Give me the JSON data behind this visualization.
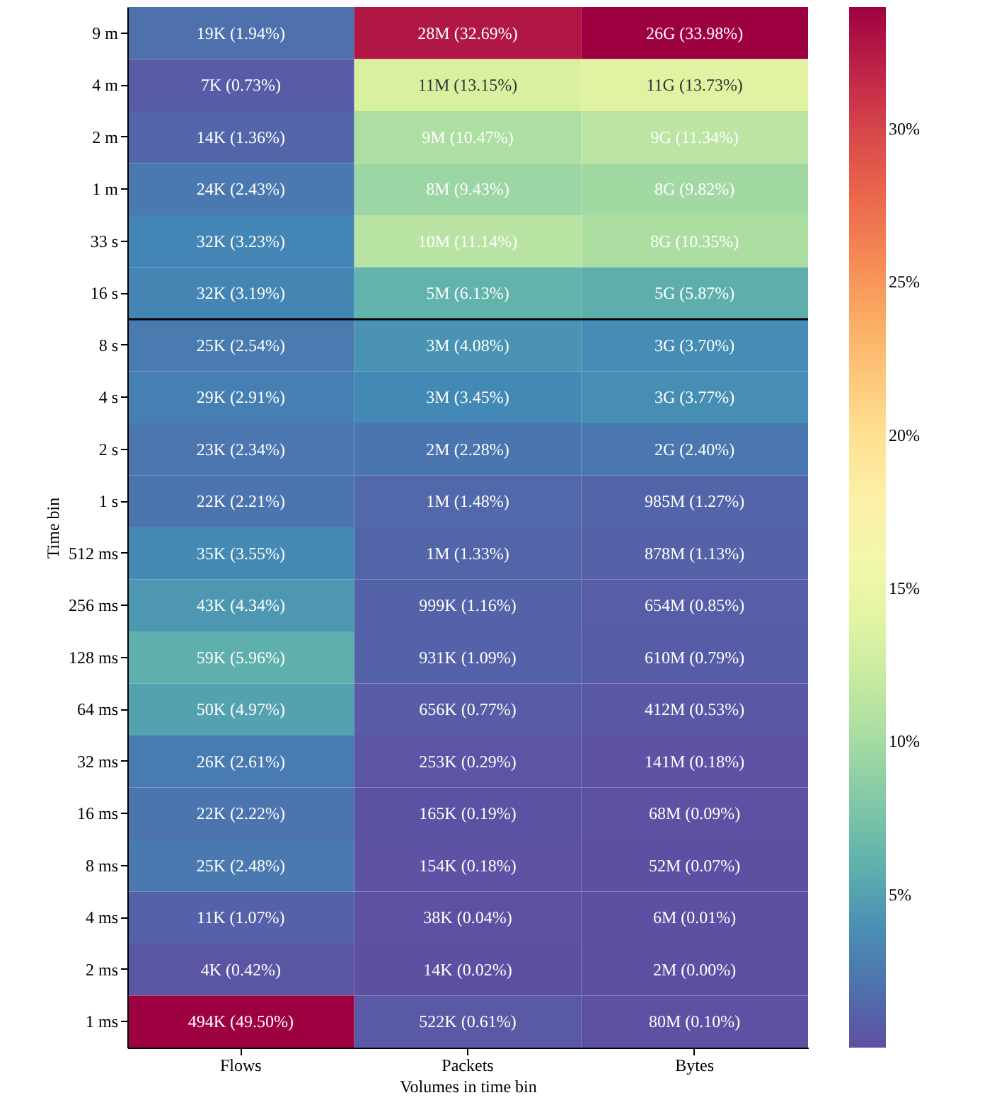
{
  "chart_data": {
    "type": "heatmap",
    "xlabel": "Volumes in time bin",
    "ylabel": "Time bin",
    "categories": [
      "Flows",
      "Packets",
      "Bytes"
    ],
    "y_categories": [
      "9 m",
      "4 m",
      "2 m",
      "1 m",
      "33 s",
      "16 s",
      "8 s",
      "4 s",
      "2 s",
      "1 s",
      "512 ms",
      "256 ms",
      "128 ms",
      "64 ms",
      "32 ms",
      "16 ms",
      "8 ms",
      "4 ms",
      "2 ms",
      "1 ms"
    ],
    "cells": [
      [
        1.94,
        32.69,
        33.98
      ],
      [
        0.73,
        13.15,
        13.73
      ],
      [
        1.36,
        10.47,
        11.34
      ],
      [
        2.43,
        9.43,
        9.82
      ],
      [
        3.23,
        11.14,
        10.35
      ],
      [
        3.19,
        6.13,
        5.87
      ],
      [
        2.54,
        4.08,
        3.7
      ],
      [
        2.91,
        3.45,
        3.77
      ],
      [
        2.34,
        2.28,
        2.4
      ],
      [
        2.21,
        1.48,
        1.27
      ],
      [
        3.55,
        1.33,
        1.13
      ],
      [
        4.34,
        1.16,
        0.85
      ],
      [
        5.96,
        1.09,
        0.79
      ],
      [
        4.97,
        0.77,
        0.53
      ],
      [
        2.61,
        0.29,
        0.18
      ],
      [
        2.22,
        0.19,
        0.09
      ],
      [
        2.48,
        0.18,
        0.07
      ],
      [
        1.07,
        0.04,
        0.01
      ],
      [
        0.42,
        0.02,
        0.0
      ],
      [
        49.5,
        0.61,
        0.1
      ]
    ],
    "cell_labels": [
      [
        "19K (1.94%)",
        "28M (32.69%)",
        "26G (33.98%)"
      ],
      [
        "7K (0.73%)",
        "11M (13.15%)",
        "11G (13.73%)"
      ],
      [
        "14K (1.36%)",
        "9M (10.47%)",
        "9G (11.34%)"
      ],
      [
        "24K (2.43%)",
        "8M (9.43%)",
        "8G (9.82%)"
      ],
      [
        "32K (3.23%)",
        "10M (11.14%)",
        "8G (10.35%)"
      ],
      [
        "32K (3.19%)",
        "5M (6.13%)",
        "5G (5.87%)"
      ],
      [
        "25K (2.54%)",
        "3M (4.08%)",
        "3G (3.70%)"
      ],
      [
        "29K (2.91%)",
        "3M (3.45%)",
        "3G (3.77%)"
      ],
      [
        "23K (2.34%)",
        "2M (2.28%)",
        "2G (2.40%)"
      ],
      [
        "22K (2.21%)",
        "1M (1.48%)",
        "985M (1.27%)"
      ],
      [
        "35K (3.55%)",
        "1M (1.33%)",
        "878M (1.13%)"
      ],
      [
        "43K (4.34%)",
        "999K (1.16%)",
        "654M (0.85%)"
      ],
      [
        "59K (5.96%)",
        "931K (1.09%)",
        "610M (0.79%)"
      ],
      [
        "50K (4.97%)",
        "656K (0.77%)",
        "412M (0.53%)"
      ],
      [
        "26K (2.61%)",
        "253K (0.29%)",
        "141M (0.18%)"
      ],
      [
        "22K (2.22%)",
        "165K (0.19%)",
        "68M (0.09%)"
      ],
      [
        "25K (2.48%)",
        "154K (0.18%)",
        "52M (0.07%)"
      ],
      [
        "11K (1.07%)",
        "38K (0.04%)",
        "6M (0.01%)"
      ],
      [
        "4K (0.42%)",
        "14K (0.02%)",
        "2M (0.00%)"
      ],
      [
        "494K (49.50%)",
        "522K (0.61%)",
        "80M (0.10%)"
      ]
    ],
    "clim": [
      0,
      33.98
    ],
    "cticks": [
      {
        "value": 5,
        "label": "5%"
      },
      {
        "value": 10,
        "label": "10%"
      },
      {
        "value": 15,
        "label": "15%"
      },
      {
        "value": 20,
        "label": "20%"
      },
      {
        "value": 25,
        "label": "25%"
      },
      {
        "value": 30,
        "label": "30%"
      }
    ],
    "ref_lines": [
      {
        "axis": "y",
        "value": "16 s",
        "color": "#000000"
      }
    ]
  }
}
